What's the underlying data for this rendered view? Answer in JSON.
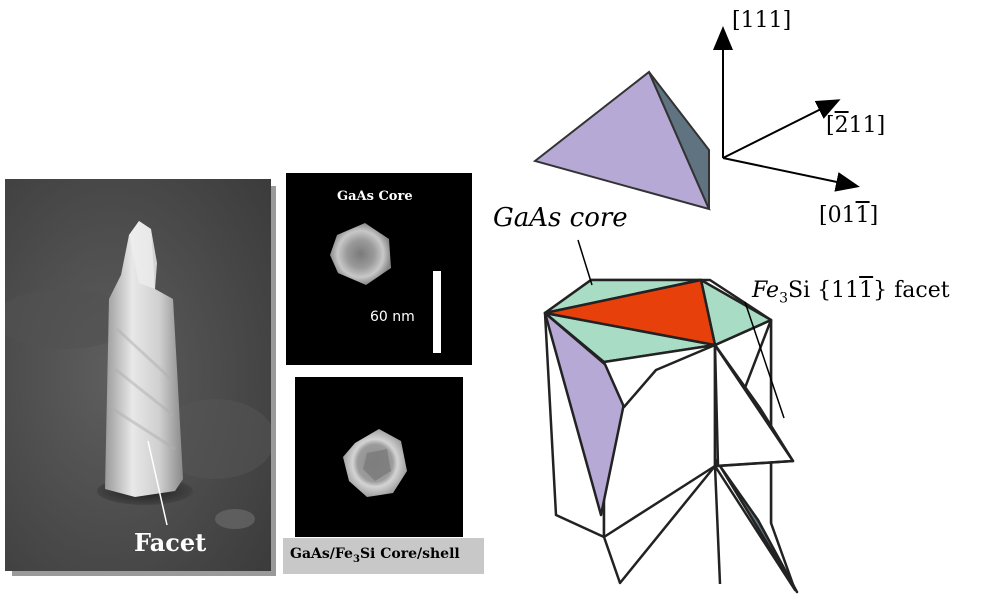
{
  "sem": {
    "facet_label": "Facet"
  },
  "core_panel": {
    "title": "GaAs Core",
    "scale_bar": "60 nm"
  },
  "shell_panel": {
    "caption_prefix": "GaAs/Fe",
    "caption_sub1": "3",
    "caption_suffix": "Si Core/shell"
  },
  "diagram": {
    "axis_111": "[111]",
    "axis_211_bar": "2",
    "axis_211_rest": "11]",
    "axis_011_prefix": "[01",
    "axis_011_bar": "1",
    "axis_011_suffix": "]",
    "core_label": "GaAs core",
    "fe_label": "Fe",
    "fe_sub": "3",
    "fe_si": "Si",
    "facet_braces": "{11",
    "facet_bar": "1",
    "facet_close": "} facet"
  },
  "colors": {
    "lavender": "#b7a9d6",
    "slate": "#5f7480",
    "mint": "#a9dcc5",
    "orange": "#e8400a"
  }
}
